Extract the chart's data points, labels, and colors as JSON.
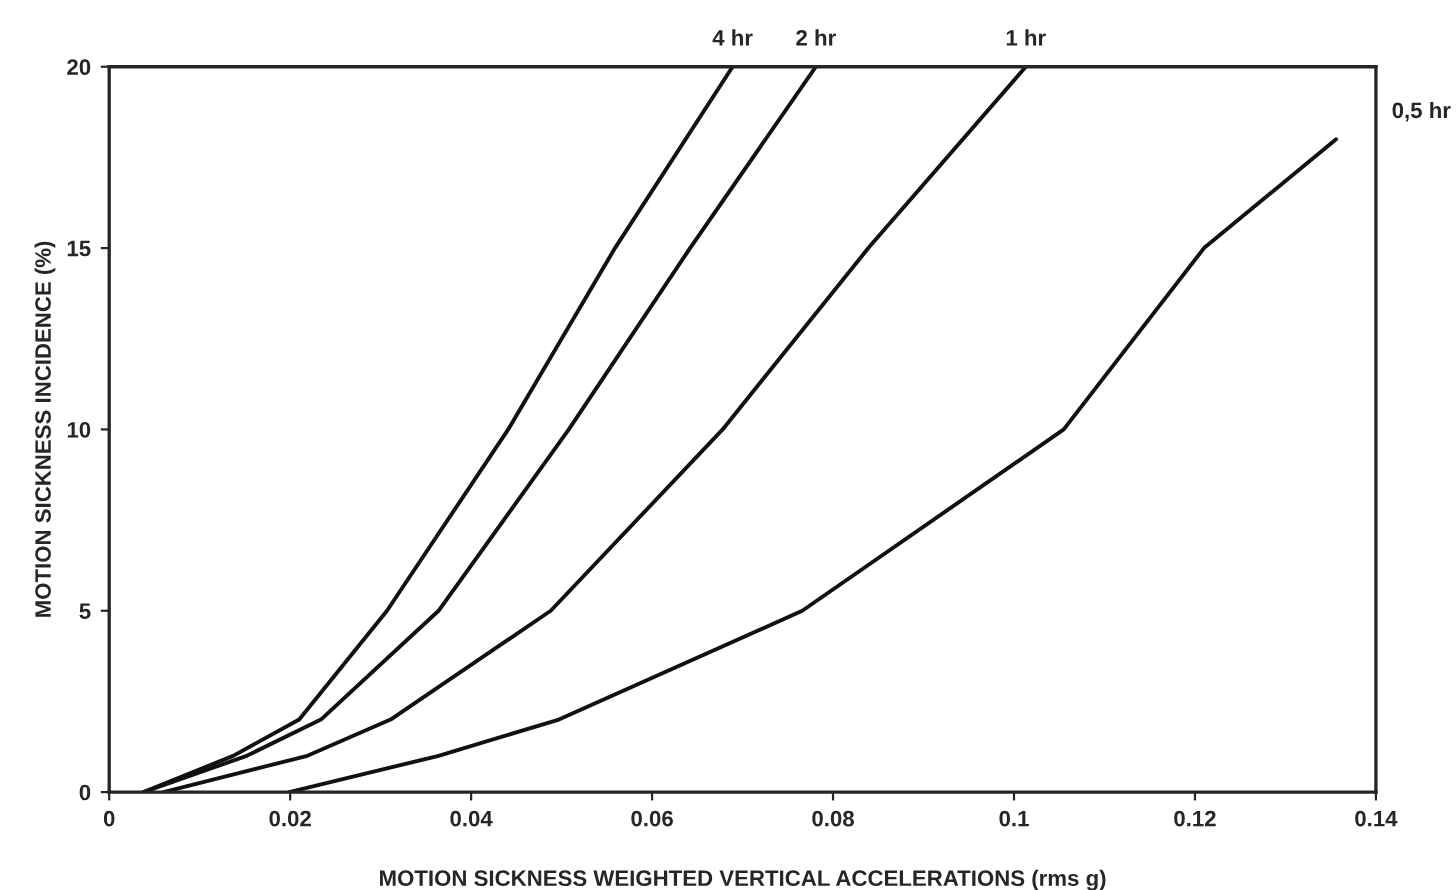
{
  "chart_data": {
    "type": "line",
    "xlabel": "MOTION SICKNESS WEIGHTED VERTICAL ACCELERATIONS (rms g)",
    "ylabel": "MOTION SICKNESS INCIDENCE (%)",
    "xlim": [
      0,
      0.14
    ],
    "ylim": [
      0,
      20
    ],
    "xticks": [
      0,
      0.02,
      0.04,
      0.06,
      0.08,
      0.1,
      0.12,
      0.14
    ],
    "yticks": [
      0,
      5,
      10,
      15,
      20
    ],
    "grid": false,
    "legend": false,
    "marker": "none",
    "line_style": "solid",
    "series": [
      {
        "color": "#111111",
        "x": [
          0.0038,
          0.0137,
          0.021,
          0.0307,
          0.0441,
          0.0559,
          0.0689
        ],
        "values": [
          0,
          1,
          2,
          5,
          10,
          15,
          20
        ]
      },
      {
        "color": "#111111",
        "x": [
          0.0038,
          0.0152,
          0.0234,
          0.0364,
          0.0508,
          0.0642,
          0.0781
        ],
        "values": [
          0,
          1,
          2,
          5,
          10,
          15,
          20
        ]
      },
      {
        "color": "#111111",
        "x": [
          0.006,
          0.0219,
          0.0311,
          0.0488,
          0.0678,
          0.0839,
          0.1013
        ],
        "values": [
          0,
          1,
          2,
          5,
          10,
          15,
          20
        ]
      },
      {
        "color": "#111111",
        "x": [
          0.0199,
          0.0364,
          0.0497,
          0.0766,
          0.1055,
          0.121,
          0.1356
        ],
        "values": [
          0,
          1,
          2,
          5,
          10,
          15,
          18
        ]
      }
    ],
    "annotations": [
      {
        "text": "4 hr",
        "x": 0.0689,
        "y": 20
      },
      {
        "text": "2 hr",
        "x": 0.0781,
        "y": 20
      },
      {
        "text": "1 hr",
        "x": 0.1013,
        "y": 20
      },
      {
        "text": "0,5 hr",
        "x": 0.1356,
        "y": 18
      }
    ]
  }
}
